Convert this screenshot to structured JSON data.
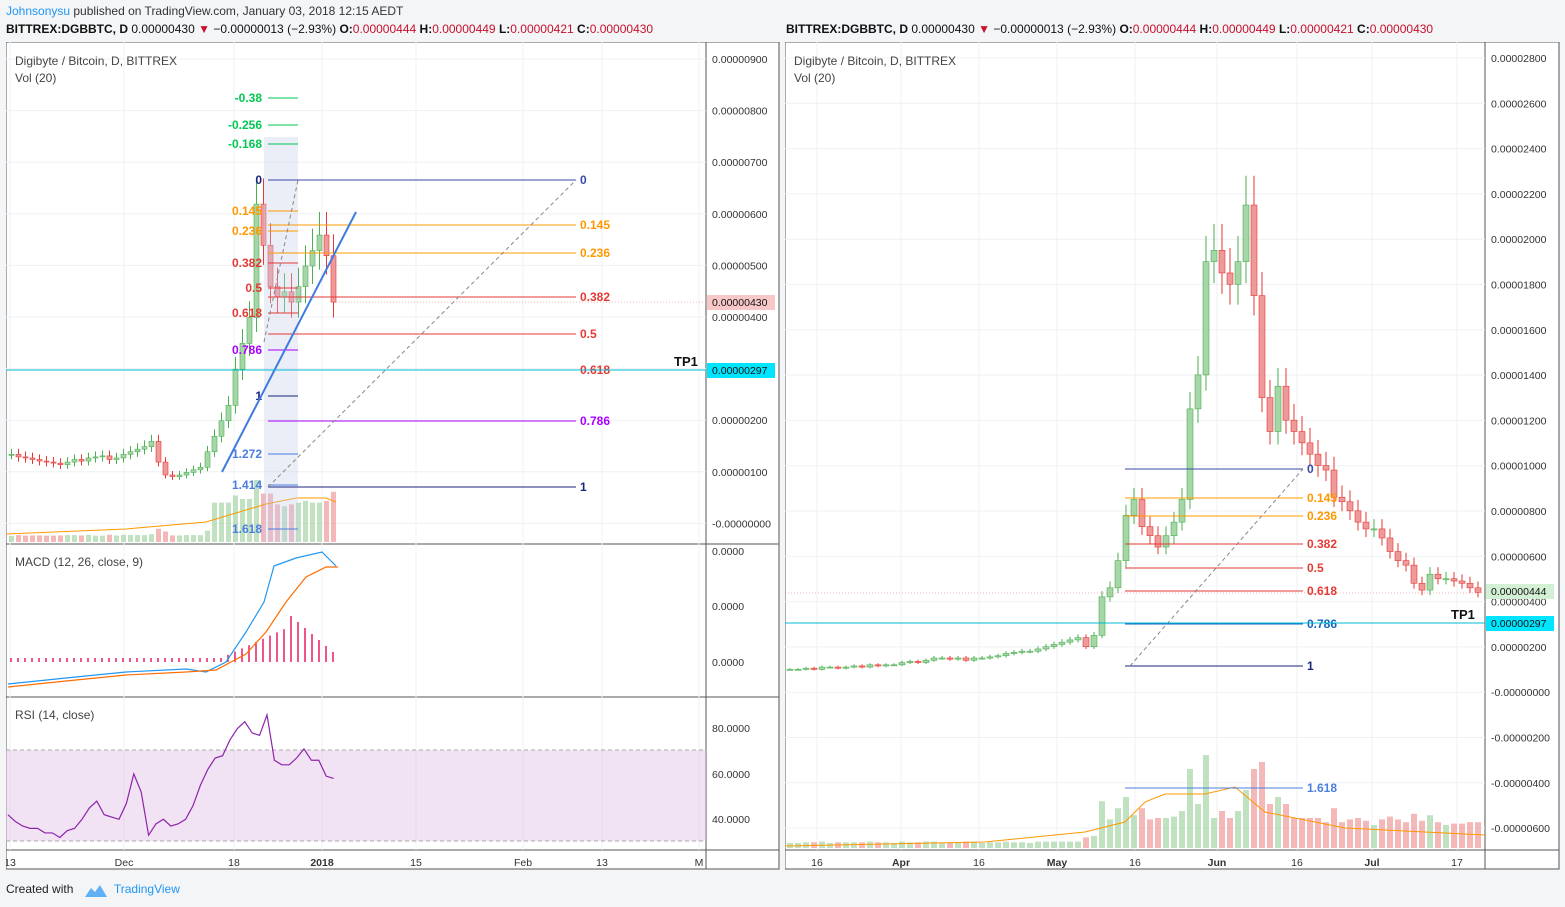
{
  "header": {
    "user": "Johnsonysu",
    "text": " published on TradingView.com, January 03, 2018 12:15 AEDT"
  },
  "tickers": [
    {
      "symbol": "BITTREX:DGBBTC, D",
      "price": "0.00000430",
      "arrow": "▼",
      "change": "−0.00000013 (−2.93%)",
      "o": "0.00000444",
      "h": "0.00000449",
      "l": "0.00000421",
      "c": "0.00000430"
    },
    {
      "symbol": "BITTREX:DGBBTC, D",
      "price": "0.00000430",
      "arrow": "▼",
      "change": "−0.00000013 (−2.93%)",
      "o": "0.00000444",
      "h": "0.00000449",
      "l": "0.00000421",
      "c": "0.00000430"
    }
  ],
  "footer": {
    "created": "Created with",
    "brand": "TradingView"
  },
  "chart_data": [
    {
      "type": "candlestick",
      "title": "Digibyte / Bitcoin, D, BITTREX",
      "subtitle": "Vol (20)",
      "x_ticks": [
        "13",
        "Dec",
        "18",
        "2018",
        "15",
        "Feb",
        "13",
        "M"
      ],
      "y_ticks": [
        "0.00000900",
        "0.00000800",
        "0.00000700",
        "0.00000600",
        "0.00000500",
        "0.00000400",
        "0.00000300",
        "0.00000200",
        "0.00000100",
        "-0.00000000"
      ],
      "last_price_label": "0.00000430",
      "tp_label": "TP1",
      "tp_price": "0.00000297",
      "closes": [
        1.35,
        1.3,
        1.28,
        1.25,
        1.22,
        1.2,
        1.18,
        1.15,
        1.2,
        1.25,
        1.22,
        1.28,
        1.3,
        1.32,
        1.25,
        1.28,
        1.35,
        1.4,
        1.45,
        1.5,
        1.6,
        1.2,
        0.95,
        0.92,
        0.95,
        1.0,
        1.05,
        1.1,
        1.4,
        1.7,
        2.0,
        2.3,
        3.0,
        3.5,
        4.0,
        6.2,
        5.4,
        4.6,
        4.4,
        4.5,
        4.3,
        4.6,
        5.0,
        5.3,
        5.6,
        5.2,
        4.3
      ],
      "fib_left": [
        "-0.38",
        "-0.256",
        "-0.168",
        "0",
        "0.145",
        "0.236",
        "0.382",
        "0.5",
        "0.618",
        "0.786",
        "1",
        "1.272",
        "1.414",
        "1.618"
      ],
      "fib_right": [
        "0",
        "0.145",
        "0.236",
        "0.382",
        "0.5",
        "0.618",
        "0.786",
        "1"
      ],
      "macd": {
        "title": "MACD (12, 26, close, 9)",
        "y_ticks": [
          "0.0000",
          "0.0000",
          "0.0000"
        ]
      },
      "rsi": {
        "title": "RSI (14, close)",
        "y_ticks": [
          "80.0000",
          "60.0000",
          "40.0000"
        ],
        "values": [
          42,
          39,
          37,
          36,
          36,
          34,
          34,
          32,
          35,
          36,
          40,
          45,
          48,
          42,
          41,
          40,
          47,
          60,
          52,
          33,
          38,
          40,
          37,
          38,
          40,
          46,
          55,
          62,
          67,
          68,
          75,
          80,
          83,
          78,
          77,
          86,
          66,
          64,
          64,
          67,
          71,
          66,
          66,
          59,
          58
        ]
      }
    },
    {
      "type": "candlestick",
      "title": "Digibyte / Bitcoin, D, BITTREX",
      "subtitle": "Vol (20)",
      "x_ticks": [
        "16",
        "Apr",
        "16",
        "May",
        "16",
        "Jun",
        "16",
        "Jul",
        "17"
      ],
      "y_ticks": [
        "0.00002800",
        "0.00002600",
        "0.00002400",
        "0.00002200",
        "0.00002000",
        "0.00001800",
        "0.00001600",
        "0.00001400",
        "0.00001200",
        "0.00001000",
        "0.00000800",
        "0.00000600",
        "0.00000400",
        "0.00000200",
        "-0.00000000",
        "-0.00000200",
        "-0.00000400",
        "-0.00000600"
      ],
      "last_price_label": "0.00000444",
      "tp_label": "TP1",
      "tp_price": "0.00000297",
      "closes": [
        1.0,
        1.0,
        1.05,
        1.0,
        1.1,
        1.1,
        1.05,
        1.1,
        1.15,
        1.1,
        1.2,
        1.15,
        1.2,
        1.2,
        1.3,
        1.35,
        1.3,
        1.4,
        1.5,
        1.5,
        1.45,
        1.5,
        1.4,
        1.5,
        1.5,
        1.55,
        1.6,
        1.7,
        1.75,
        1.8,
        1.8,
        1.9,
        2.0,
        2.1,
        2.2,
        2.3,
        2.4,
        2.0,
        2.5,
        4.2,
        4.6,
        5.8,
        7.8,
        8.5,
        7.3,
        6.9,
        6.4,
        6.9,
        7.5,
        8.5,
        12.5,
        14.0,
        19.0,
        19.5,
        18.5,
        18.0,
        19.0,
        21.5,
        17.5,
        13.0,
        11.5,
        13.5,
        12.0,
        11.5,
        11.0,
        10.5,
        10.0,
        9.8,
        8.6,
        8.4,
        8.0,
        7.5,
        7.2,
        7.2,
        6.8,
        6.2,
        5.8,
        5.6,
        4.8,
        4.5,
        5.2,
        5.0,
        5.0,
        4.9,
        4.8,
        4.6,
        4.4
      ],
      "fib_right": [
        "0",
        "0.145",
        "0.236",
        "0.382",
        "0.5",
        "0.618",
        "0.786",
        "1",
        "1.618"
      ]
    }
  ]
}
